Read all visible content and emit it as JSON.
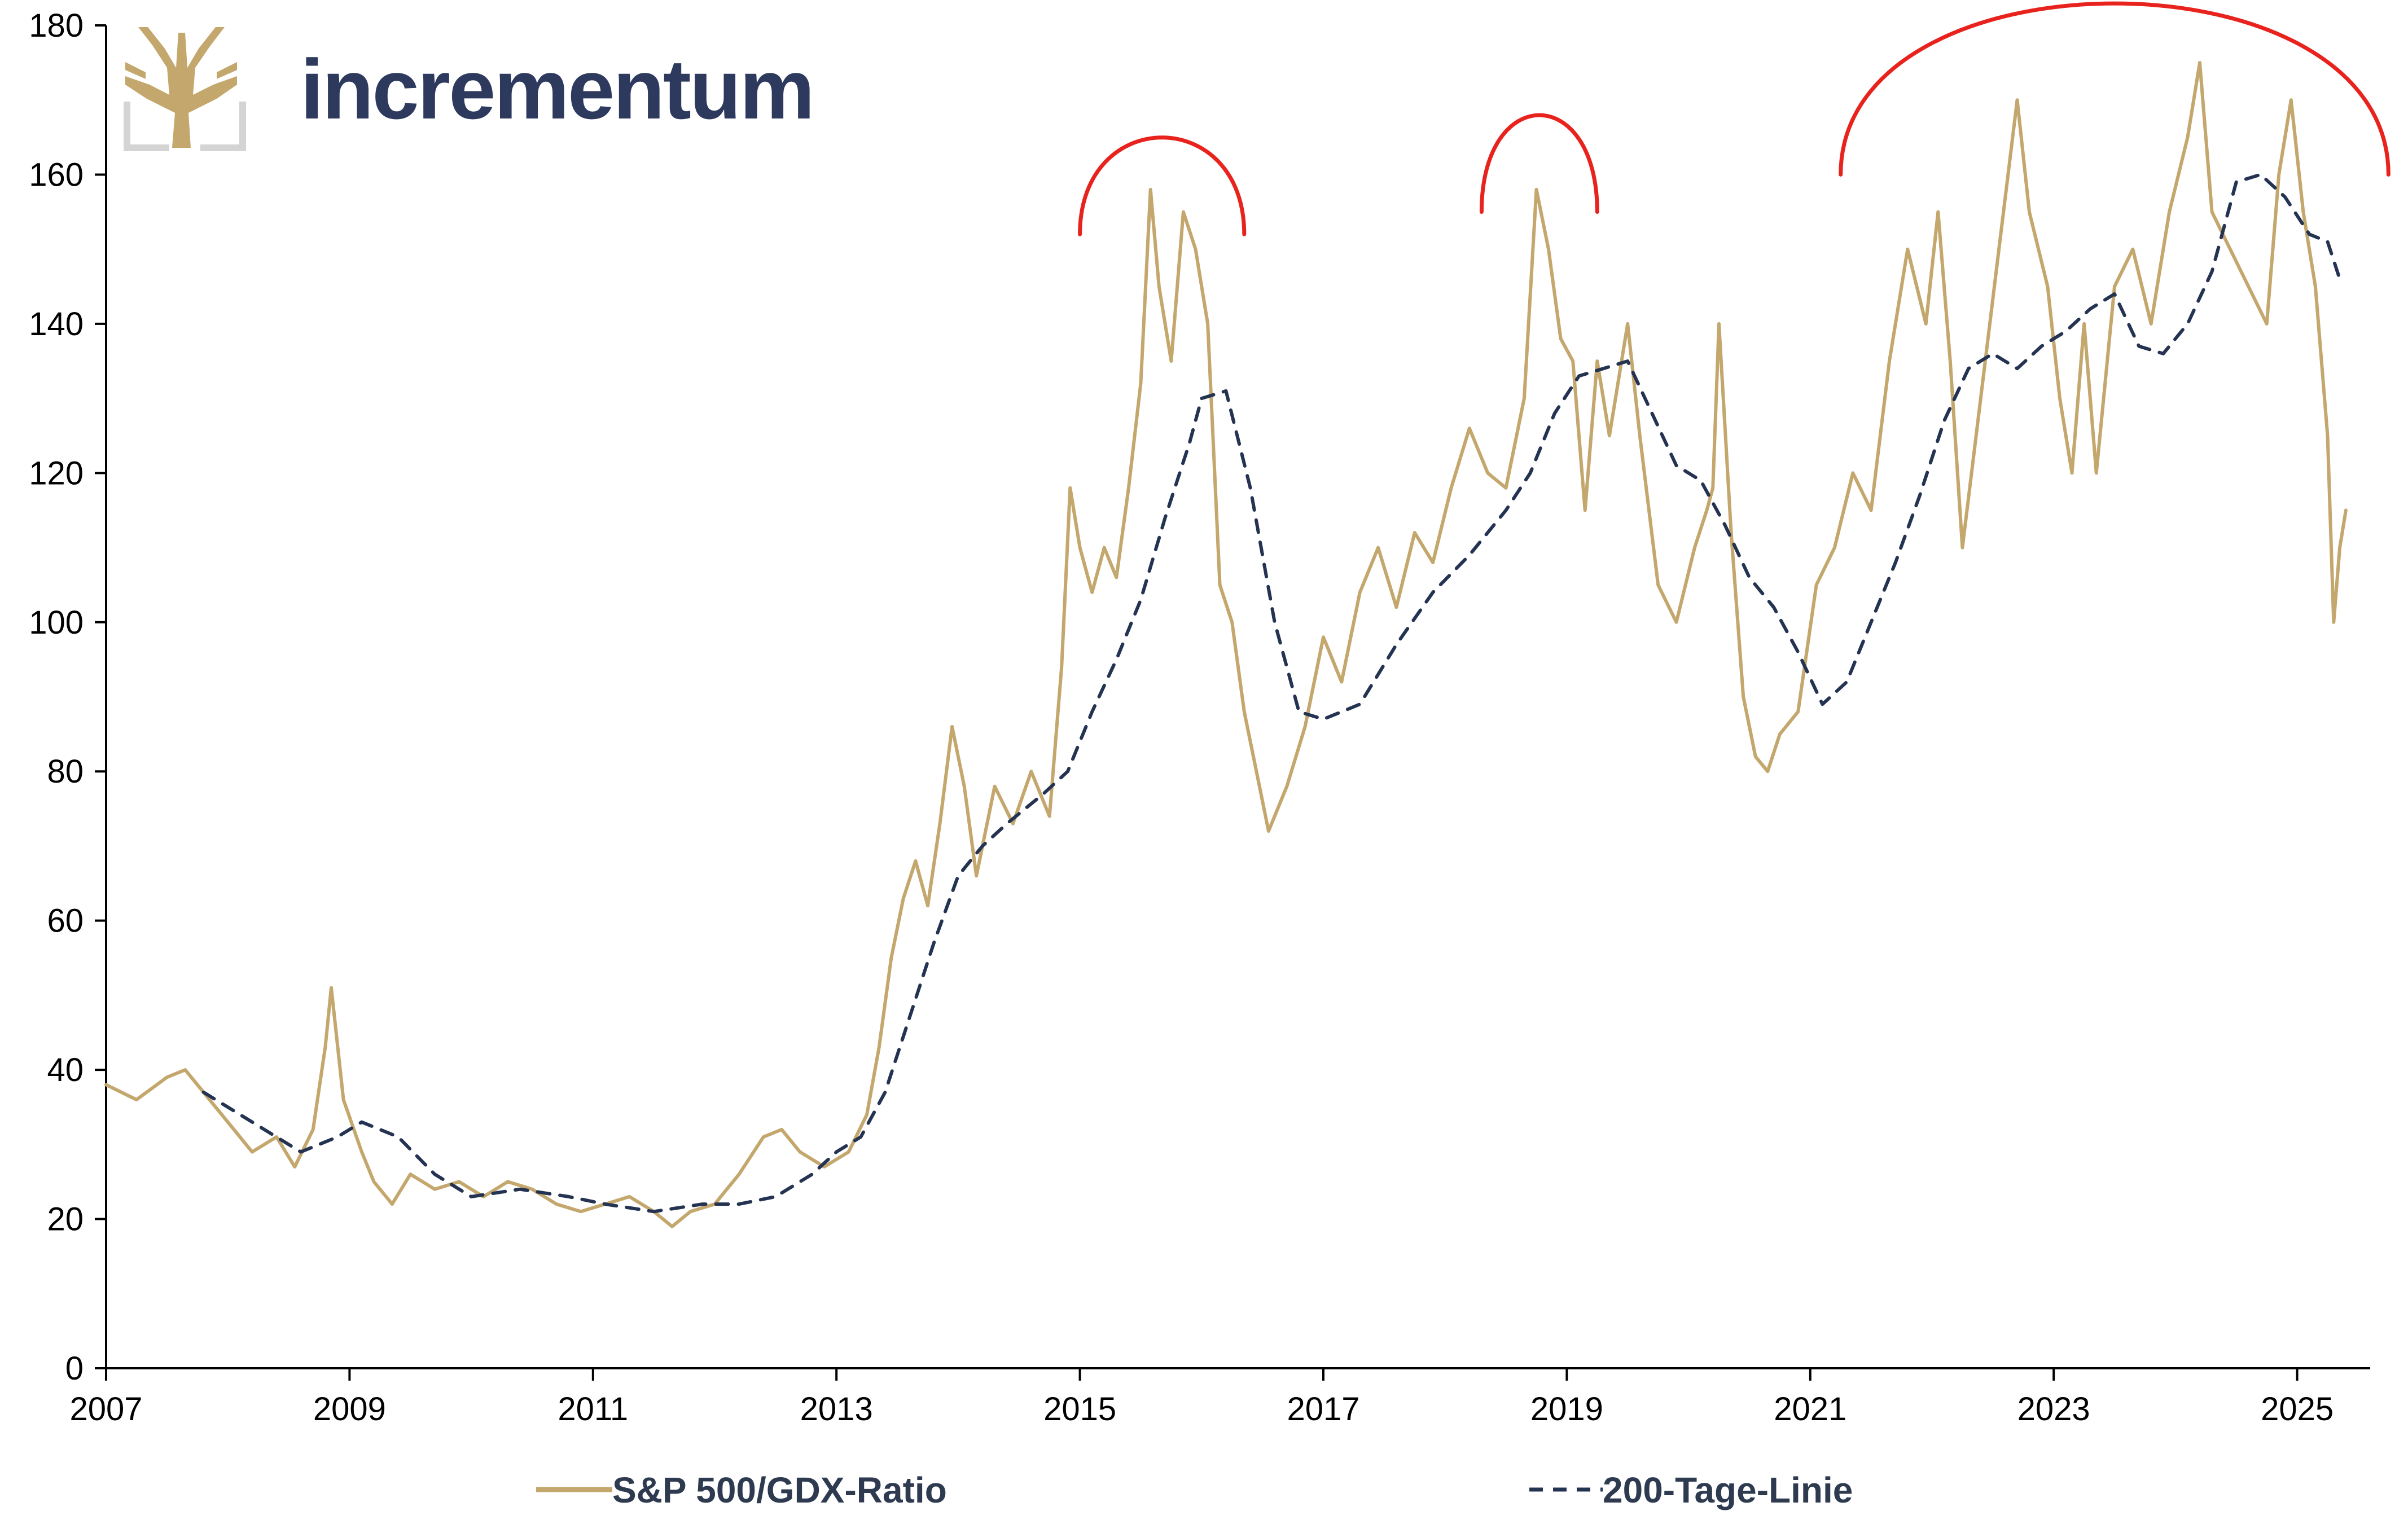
{
  "brand": {
    "name": "incrementum",
    "logo_icon": "tree-logo-icon",
    "gold": "#c3a76d",
    "navy": "#2d3a5e"
  },
  "colors": {
    "ratio_line": "#c3a76d",
    "ma_line": "#243352",
    "annotation_arcs": "#e8231e",
    "axis": "#000000"
  },
  "chart_data": {
    "type": "line",
    "title": "",
    "xlabel": "",
    "ylabel": "",
    "xlim": [
      2007.0,
      2025.6
    ],
    "ylim": [
      0,
      180
    ],
    "x_ticks": [
      "2007",
      "2009",
      "2011",
      "2013",
      "2015",
      "2017",
      "2019",
      "2021",
      "2023",
      "2025"
    ],
    "y_ticks": [
      "0",
      "20",
      "40",
      "60",
      "80",
      "100",
      "120",
      "140",
      "160",
      "180"
    ],
    "grid": false,
    "legend": "bottom",
    "series": [
      {
        "name": "S&P 500/GDX-Ratio",
        "style": "solid",
        "x": [
          2007.0,
          2007.25,
          2007.5,
          2007.65,
          2007.8,
          2008.0,
          2008.2,
          2008.4,
          2008.55,
          2008.7,
          2008.8,
          2008.85,
          2008.95,
          2009.1,
          2009.2,
          2009.35,
          2009.5,
          2009.7,
          2009.9,
          2010.1,
          2010.3,
          2010.5,
          2010.7,
          2010.9,
          2011.1,
          2011.3,
          2011.5,
          2011.65,
          2011.8,
          2012.0,
          2012.2,
          2012.4,
          2012.55,
          2012.7,
          2012.9,
          2013.1,
          2013.25,
          2013.35,
          2013.45,
          2013.55,
          2013.65,
          2013.75,
          2013.85,
          2013.95,
          2014.05,
          2014.15,
          2014.3,
          2014.45,
          2014.6,
          2014.75,
          2014.85,
          2014.92,
          2015.0,
          2015.1,
          2015.2,
          2015.3,
          2015.4,
          2015.5,
          2015.58,
          2015.65,
          2015.75,
          2015.85,
          2015.95,
          2016.05,
          2016.15,
          2016.25,
          2016.35,
          2016.45,
          2016.55,
          2016.7,
          2016.85,
          2017.0,
          2017.15,
          2017.3,
          2017.45,
          2017.6,
          2017.75,
          2017.9,
          2018.05,
          2018.2,
          2018.35,
          2018.5,
          2018.65,
          2018.75,
          2018.85,
          2018.95,
          2019.05,
          2019.15,
          2019.25,
          2019.35,
          2019.5,
          2019.6,
          2019.75,
          2019.9,
          2020.05,
          2020.15,
          2020.2,
          2020.25,
          2020.35,
          2020.45,
          2020.55,
          2020.65,
          2020.75,
          2020.9,
          2021.05,
          2021.2,
          2021.35,
          2021.5,
          2021.65,
          2021.8,
          2021.95,
          2022.05,
          2022.15,
          2022.25,
          2022.4,
          2022.55,
          2022.7,
          2022.8,
          2022.95,
          2023.05,
          2023.15,
          2023.25,
          2023.35,
          2023.5,
          2023.65,
          2023.8,
          2023.95,
          2024.1,
          2024.2,
          2024.3,
          2024.45,
          2024.6,
          2024.75,
          2024.85,
          2024.95,
          2025.05,
          2025.15,
          2025.25,
          2025.3,
          2025.35,
          2025.4
        ],
        "values": [
          38,
          36,
          39,
          40,
          37,
          33,
          29,
          31,
          27,
          32,
          43,
          51,
          36,
          29,
          25,
          22,
          26,
          24,
          25,
          23,
          25,
          24,
          22,
          21,
          22,
          23,
          21,
          19,
          21,
          22,
          26,
          31,
          32,
          29,
          27,
          29,
          34,
          43,
          55,
          63,
          68,
          62,
          73,
          86,
          78,
          66,
          78,
          73,
          80,
          74,
          94,
          118,
          110,
          104,
          110,
          106,
          118,
          132,
          158,
          145,
          135,
          155,
          150,
          140,
          105,
          100,
          88,
          80,
          72,
          78,
          86,
          98,
          92,
          104,
          110,
          102,
          112,
          108,
          118,
          126,
          120,
          118,
          130,
          158,
          150,
          138,
          135,
          115,
          135,
          125,
          140,
          125,
          105,
          100,
          110,
          115,
          118,
          140,
          112,
          90,
          82,
          80,
          85,
          88,
          105,
          110,
          120,
          115,
          135,
          150,
          140,
          155,
          135,
          110,
          130,
          150,
          170,
          155,
          145,
          130,
          120,
          140,
          120,
          145,
          150,
          140,
          155,
          165,
          175,
          155,
          150,
          145,
          140,
          160,
          170,
          155,
          145,
          125,
          100,
          110,
          115
        ]
      },
      {
        "name": "200-Tage-Linie",
        "style": "dashed",
        "x": [
          2007.8,
          2008.0,
          2008.3,
          2008.6,
          2008.9,
          2009.1,
          2009.4,
          2009.7,
          2010.0,
          2010.4,
          2010.8,
          2011.1,
          2011.5,
          2011.9,
          2012.2,
          2012.5,
          2012.8,
          2013.0,
          2013.2,
          2013.4,
          2013.6,
          2013.8,
          2014.0,
          2014.2,
          2014.4,
          2014.7,
          2014.9,
          2015.1,
          2015.3,
          2015.5,
          2015.7,
          2015.9,
          2016.0,
          2016.2,
          2016.4,
          2016.6,
          2016.8,
          2017.0,
          2017.3,
          2017.6,
          2017.9,
          2018.2,
          2018.5,
          2018.7,
          2018.9,
          2019.1,
          2019.3,
          2019.5,
          2019.7,
          2019.9,
          2020.1,
          2020.3,
          2020.5,
          2020.7,
          2020.9,
          2021.1,
          2021.3,
          2021.5,
          2021.7,
          2021.9,
          2022.1,
          2022.3,
          2022.5,
          2022.7,
          2022.9,
          2023.1,
          2023.3,
          2023.5,
          2023.7,
          2023.9,
          2024.1,
          2024.3,
          2024.5,
          2024.7,
          2024.9,
          2025.1,
          2025.25,
          2025.35
        ],
        "values": [
          37,
          35,
          32,
          29,
          31,
          33,
          31,
          26,
          23,
          24,
          23,
          22,
          21,
          22,
          22,
          23,
          26,
          29,
          31,
          37,
          47,
          57,
          66,
          70,
          73,
          77,
          80,
          88,
          95,
          103,
          114,
          124,
          130,
          131,
          118,
          100,
          88,
          87,
          89,
          97,
          104,
          109,
          115,
          120,
          128,
          133,
          134,
          135,
          128,
          121,
          119,
          113,
          106,
          102,
          96,
          89,
          92,
          100,
          108,
          117,
          127,
          134,
          136,
          134,
          137,
          139,
          142,
          144,
          137,
          136,
          140,
          147,
          159,
          160,
          157,
          152,
          151,
          146
        ]
      }
    ],
    "annotations": [
      {
        "type": "arc",
        "x_from": 2015.0,
        "x_to": 2016.35,
        "y_base": 152,
        "y_peak": 165
      },
      {
        "type": "arc",
        "x_from": 2018.3,
        "x_to": 2019.25,
        "y_base": 155,
        "y_peak": 168
      },
      {
        "type": "arc",
        "x_from": 2021.25,
        "x_to": 2025.75,
        "y_base": 160,
        "y_peak": 183
      }
    ]
  },
  "legend": {
    "items": [
      {
        "label": "S&P 500/GDX-Ratio",
        "style": "solid"
      },
      {
        "label": "200-Tage-Linie",
        "style": "dashed"
      }
    ]
  }
}
